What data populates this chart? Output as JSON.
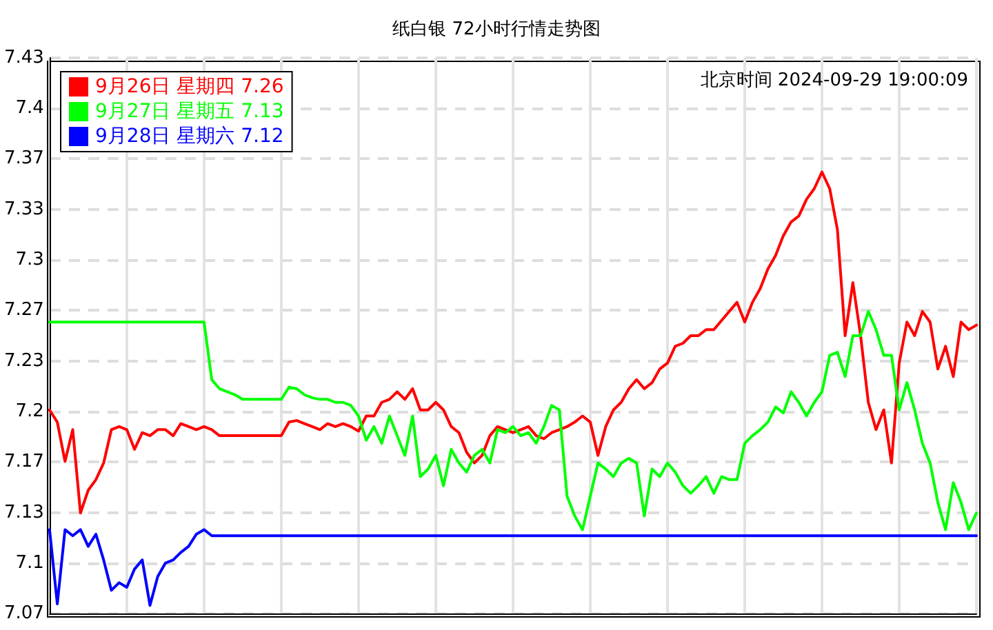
{
  "chart_data": {
    "type": "line",
    "title": "纸白银 72小时行情走势图",
    "annotations": [
      "北京时间 2024-09-29 19:00:09"
    ],
    "categories": [
      null,
      null,
      null,
      null,
      null,
      null,
      null,
      null,
      null,
      null,
      null,
      null,
      null,
      null,
      null,
      null,
      null,
      null,
      null,
      null,
      null,
      null,
      null,
      null,
      null,
      null,
      null,
      null,
      null,
      null,
      null,
      null,
      null,
      null,
      null,
      null,
      null,
      null,
      null,
      null,
      null,
      null,
      null,
      null,
      null,
      null,
      null,
      null,
      null,
      null,
      null,
      null,
      null,
      null,
      null,
      null,
      null,
      null,
      null,
      null,
      null,
      null,
      null,
      null,
      null,
      null,
      null,
      null,
      null,
      null,
      null,
      null,
      null,
      null,
      null,
      null,
      null,
      null,
      null,
      null,
      null,
      null,
      null,
      null,
      null,
      null,
      null,
      null,
      null,
      null,
      null,
      null,
      null,
      null,
      null,
      null,
      null,
      null,
      null,
      null,
      null,
      null,
      null,
      null,
      null,
      null,
      null,
      null,
      null,
      null,
      null,
      null,
      null,
      null,
      null,
      null,
      null,
      null,
      null,
      null,
      null
    ],
    "series": [
      {
        "name": "9月26日 星期四 7.26",
        "color": "#ff0000",
        "values": [
          7.201,
          7.193,
          7.167,
          7.188,
          7.133,
          7.148,
          7.155,
          7.166,
          7.188,
          7.19,
          7.188,
          7.175,
          7.186,
          7.184,
          7.188,
          7.188,
          7.184,
          7.192,
          7.19,
          7.188,
          7.19,
          7.188,
          7.184,
          7.184,
          7.184,
          7.184,
          7.184,
          7.184,
          7.184,
          7.184,
          7.184,
          7.193,
          7.194,
          7.192,
          7.19,
          7.188,
          7.192,
          7.19,
          7.192,
          7.19,
          7.187,
          7.197,
          7.197,
          7.206,
          7.208,
          7.213,
          7.208,
          7.215,
          7.201,
          7.201,
          7.206,
          7.201,
          7.19,
          7.186,
          7.173,
          7.166,
          7.171,
          7.184,
          7.19,
          7.188,
          7.186,
          7.188,
          7.19,
          7.184,
          7.182,
          7.186,
          7.188,
          7.19,
          7.193,
          7.197,
          7.193,
          7.171,
          7.19,
          7.201,
          7.206,
          7.215,
          7.221,
          7.215,
          7.219,
          7.228,
          7.232,
          7.243,
          7.245,
          7.25,
          7.25,
          7.254,
          7.254,
          7.26,
          7.266,
          7.272,
          7.259,
          7.272,
          7.281,
          7.294,
          7.303,
          7.316,
          7.325,
          7.329,
          7.34,
          7.347,
          7.358,
          7.347,
          7.32,
          7.25,
          7.285,
          7.25,
          7.206,
          7.188,
          7.201,
          7.166,
          7.232,
          7.259,
          7.25,
          7.266,
          7.259,
          7.228,
          7.243,
          7.223,
          7.259,
          7.254,
          7.257
        ]
      },
      {
        "name": "9月27日 星期五 7.13",
        "color": "#00ff00",
        "values": [
          7.259,
          7.259,
          7.259,
          7.259,
          7.259,
          7.259,
          7.259,
          7.259,
          7.259,
          7.259,
          7.259,
          7.259,
          7.259,
          7.259,
          7.259,
          7.259,
          7.259,
          7.259,
          7.259,
          7.259,
          7.259,
          7.221,
          7.215,
          7.213,
          7.211,
          7.208,
          7.208,
          7.208,
          7.208,
          7.208,
          7.208,
          7.216,
          7.215,
          7.211,
          7.209,
          7.208,
          7.208,
          7.206,
          7.206,
          7.204,
          7.197,
          7.181,
          7.19,
          7.179,
          7.197,
          7.184,
          7.171,
          7.197,
          7.157,
          7.162,
          7.171,
          7.151,
          7.175,
          7.166,
          7.16,
          7.171,
          7.175,
          7.166,
          7.188,
          7.186,
          7.19,
          7.184,
          7.186,
          7.179,
          7.19,
          7.204,
          7.201,
          7.144,
          7.131,
          7.122,
          7.144,
          7.166,
          7.162,
          7.157,
          7.166,
          7.169,
          7.166,
          7.131,
          7.162,
          7.157,
          7.166,
          7.16,
          7.151,
          7.146,
          7.151,
          7.157,
          7.146,
          7.157,
          7.155,
          7.155,
          7.179,
          7.184,
          7.188,
          7.193,
          7.203,
          7.199,
          7.213,
          7.206,
          7.197,
          7.206,
          7.213,
          7.237,
          7.239,
          7.223,
          7.25,
          7.25,
          7.266,
          7.254,
          7.237,
          7.237,
          7.201,
          7.219,
          7.201,
          7.179,
          7.166,
          7.14,
          7.122,
          7.153,
          7.14,
          7.122,
          7.133
        ]
      },
      {
        "name": "9月28日 星期六 7.12",
        "color": "#0000ff",
        "values": [
          7.122,
          7.073,
          7.122,
          7.118,
          7.122,
          7.111,
          7.119,
          7.102,
          7.082,
          7.087,
          7.084,
          7.096,
          7.102,
          7.072,
          7.091,
          7.1,
          7.102,
          7.107,
          7.111,
          7.119,
          7.122,
          7.118,
          7.118,
          7.118,
          7.118,
          7.118,
          7.118,
          7.118,
          7.118,
          7.118,
          7.118,
          7.118,
          7.118,
          7.118,
          7.118,
          7.118,
          7.118,
          7.118,
          7.118,
          7.118,
          7.118,
          7.118,
          7.118,
          7.118,
          7.118,
          7.118,
          7.118,
          7.118,
          7.118,
          7.118,
          7.118,
          7.118,
          7.118,
          7.118,
          7.118,
          7.118,
          7.118,
          7.118,
          7.118,
          7.118,
          7.118,
          7.118,
          7.118,
          7.118,
          7.118,
          7.118,
          7.118,
          7.118,
          7.118,
          7.118,
          7.118,
          7.118,
          7.118,
          7.118,
          7.118,
          7.118,
          7.118,
          7.118,
          7.118,
          7.118,
          7.118,
          7.118,
          7.118,
          7.118,
          7.118,
          7.118,
          7.118,
          7.118,
          7.118,
          7.118,
          7.118,
          7.118,
          7.118,
          7.118,
          7.118,
          7.118,
          7.118,
          7.118,
          7.118,
          7.118,
          7.118,
          7.118,
          7.118,
          7.118,
          7.118,
          7.118,
          7.118,
          7.118,
          7.118,
          7.118,
          7.118,
          7.118,
          7.118,
          7.118,
          7.118,
          7.118,
          7.118,
          7.118,
          7.118,
          7.118,
          7.118
        ]
      }
    ],
    "ylim": [
      7.0667,
      7.4333
    ],
    "yticks": [
      {
        "value": 7.0667,
        "label": "7.07"
      },
      7.1,
      {
        "value": 7.1333,
        "label": "7.13"
      },
      {
        "value": 7.1667,
        "label": "7.17"
      },
      7.2,
      {
        "value": 7.2333,
        "label": "7.23"
      },
      {
        "value": 7.2667,
        "label": "7.27"
      },
      7.3,
      {
        "value": 7.3333,
        "label": "7.33"
      },
      {
        "value": 7.3667,
        "label": "7.37"
      },
      7.4,
      {
        "value": 7.4333,
        "label": "7.43"
      }
    ],
    "tick_labels": "y",
    "grid": true,
    "legend": "top left",
    "line_style": "solid"
  }
}
